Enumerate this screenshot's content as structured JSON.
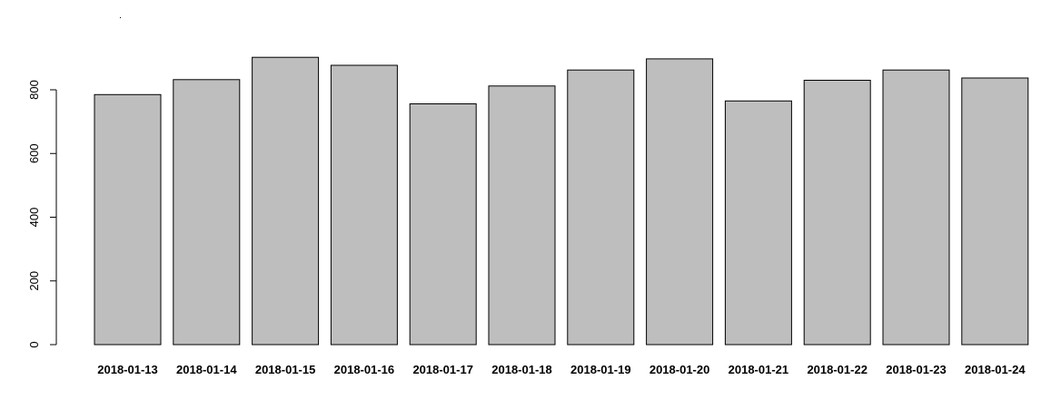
{
  "chart_data": {
    "type": "bar",
    "categories": [
      "2018-01-13",
      "2018-01-14",
      "2018-01-15",
      "2018-01-16",
      "2018-01-17",
      "2018-01-18",
      "2018-01-19",
      "2018-01-20",
      "2018-01-21",
      "2018-01-22",
      "2018-01-23",
      "2018-01-24"
    ],
    "values": [
      785,
      832,
      902,
      877,
      756,
      812,
      862,
      897,
      765,
      830,
      862,
      837
    ],
    "title": "",
    "xlabel": "",
    "ylabel": "",
    "ylim": [
      0,
      900
    ],
    "yticks": [
      "0",
      "200",
      "400",
      "600",
      "800"
    ],
    "bar_color": "#bebebe",
    "border_color": "#000000",
    "grid": false,
    "legend": "none"
  }
}
